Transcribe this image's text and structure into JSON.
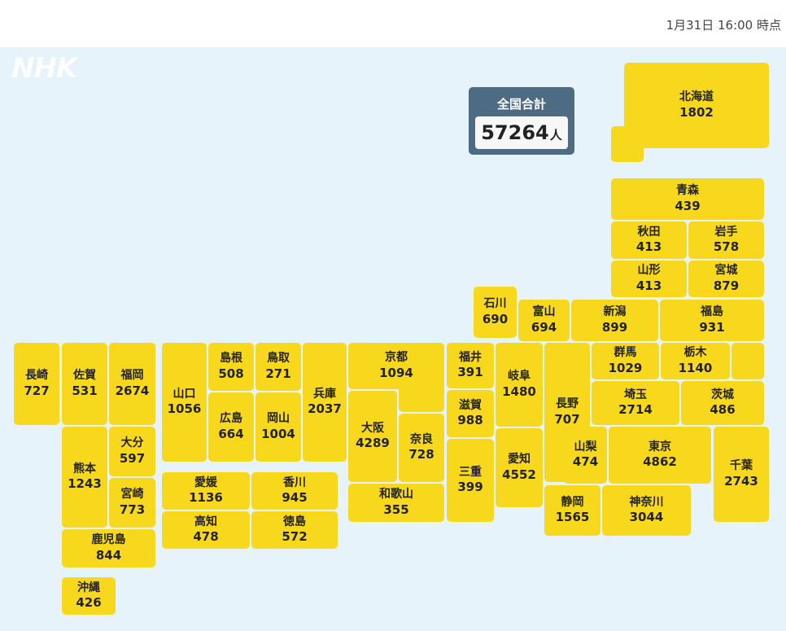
{
  "header": {
    "timestamp": "1月31日 16:00 時点"
  },
  "brand": {
    "logo": "NHK"
  },
  "total": {
    "label": "全国合計",
    "value": "57264",
    "unit": "人"
  },
  "prefectures": {
    "hokkaido": {
      "name": "北海道",
      "value": "1802"
    },
    "aomori": {
      "name": "青森",
      "value": "439"
    },
    "akita": {
      "name": "秋田",
      "value": "413"
    },
    "iwate": {
      "name": "岩手",
      "value": "578"
    },
    "yamagata": {
      "name": "山形",
      "value": "413"
    },
    "miyagi": {
      "name": "宮城",
      "value": "879"
    },
    "ishikawa": {
      "name": "石川",
      "value": "690"
    },
    "toyama": {
      "name": "富山",
      "value": "694"
    },
    "niigata": {
      "name": "新潟",
      "value": "899"
    },
    "fukushima": {
      "name": "福島",
      "value": "931"
    },
    "gunma": {
      "name": "群馬",
      "value": "1029"
    },
    "tochigi": {
      "name": "栃木",
      "value": "1140"
    },
    "nagasaki": {
      "name": "長崎",
      "value": "727"
    },
    "saga": {
      "name": "佐賀",
      "value": "531"
    },
    "fukuoka": {
      "name": "福岡",
      "value": "2674"
    },
    "yamaguchi": {
      "name": "山口",
      "value": "1056"
    },
    "shimane": {
      "name": "島根",
      "value": "508"
    },
    "tottori": {
      "name": "鳥取",
      "value": "271"
    },
    "hyogo": {
      "name": "兵庫",
      "value": "2037"
    },
    "kyoto": {
      "name": "京都",
      "value": "1094"
    },
    "fukui": {
      "name": "福井",
      "value": "391"
    },
    "gifu": {
      "name": "岐阜",
      "value": "1480"
    },
    "nagano": {
      "name": "長野",
      "value": "707"
    },
    "saitama": {
      "name": "埼玉",
      "value": "2714"
    },
    "ibaraki": {
      "name": "茨城",
      "value": "486"
    },
    "shiga": {
      "name": "滋賀",
      "value": "988"
    },
    "hiroshima": {
      "name": "広島",
      "value": "664"
    },
    "okayama": {
      "name": "岡山",
      "value": "1004"
    },
    "osaka": {
      "name": "大阪",
      "value": "4289"
    },
    "nara": {
      "name": "奈良",
      "value": "728"
    },
    "kumamoto": {
      "name": "熊本",
      "value": "1243"
    },
    "oita": {
      "name": "大分",
      "value": "597"
    },
    "miyazaki": {
      "name": "宮崎",
      "value": "773"
    },
    "aichi": {
      "name": "愛知",
      "value": "4552"
    },
    "mie": {
      "name": "三重",
      "value": "399"
    },
    "yamanashi": {
      "name": "山梨",
      "value": "474"
    },
    "tokyo": {
      "name": "東京",
      "value": "4862"
    },
    "chiba": {
      "name": "千葉",
      "value": "2743"
    },
    "ehime": {
      "name": "愛媛",
      "value": "1136"
    },
    "kagawa": {
      "name": "香川",
      "value": "945"
    },
    "kochi": {
      "name": "高知",
      "value": "478"
    },
    "tokushima": {
      "name": "徳島",
      "value": "572"
    },
    "wakayama": {
      "name": "和歌山",
      "value": "355"
    },
    "shizuoka": {
      "name": "静岡",
      "value": "1565"
    },
    "kanagawa": {
      "name": "神奈川",
      "value": "3044"
    },
    "kagoshima": {
      "name": "鹿児島",
      "value": "844"
    },
    "okinawa": {
      "name": "沖縄",
      "value": "426"
    }
  },
  "colors": {
    "tile": "#f8d81c",
    "background": "#e6f3fa",
    "total_panel": "#4d6b83"
  }
}
